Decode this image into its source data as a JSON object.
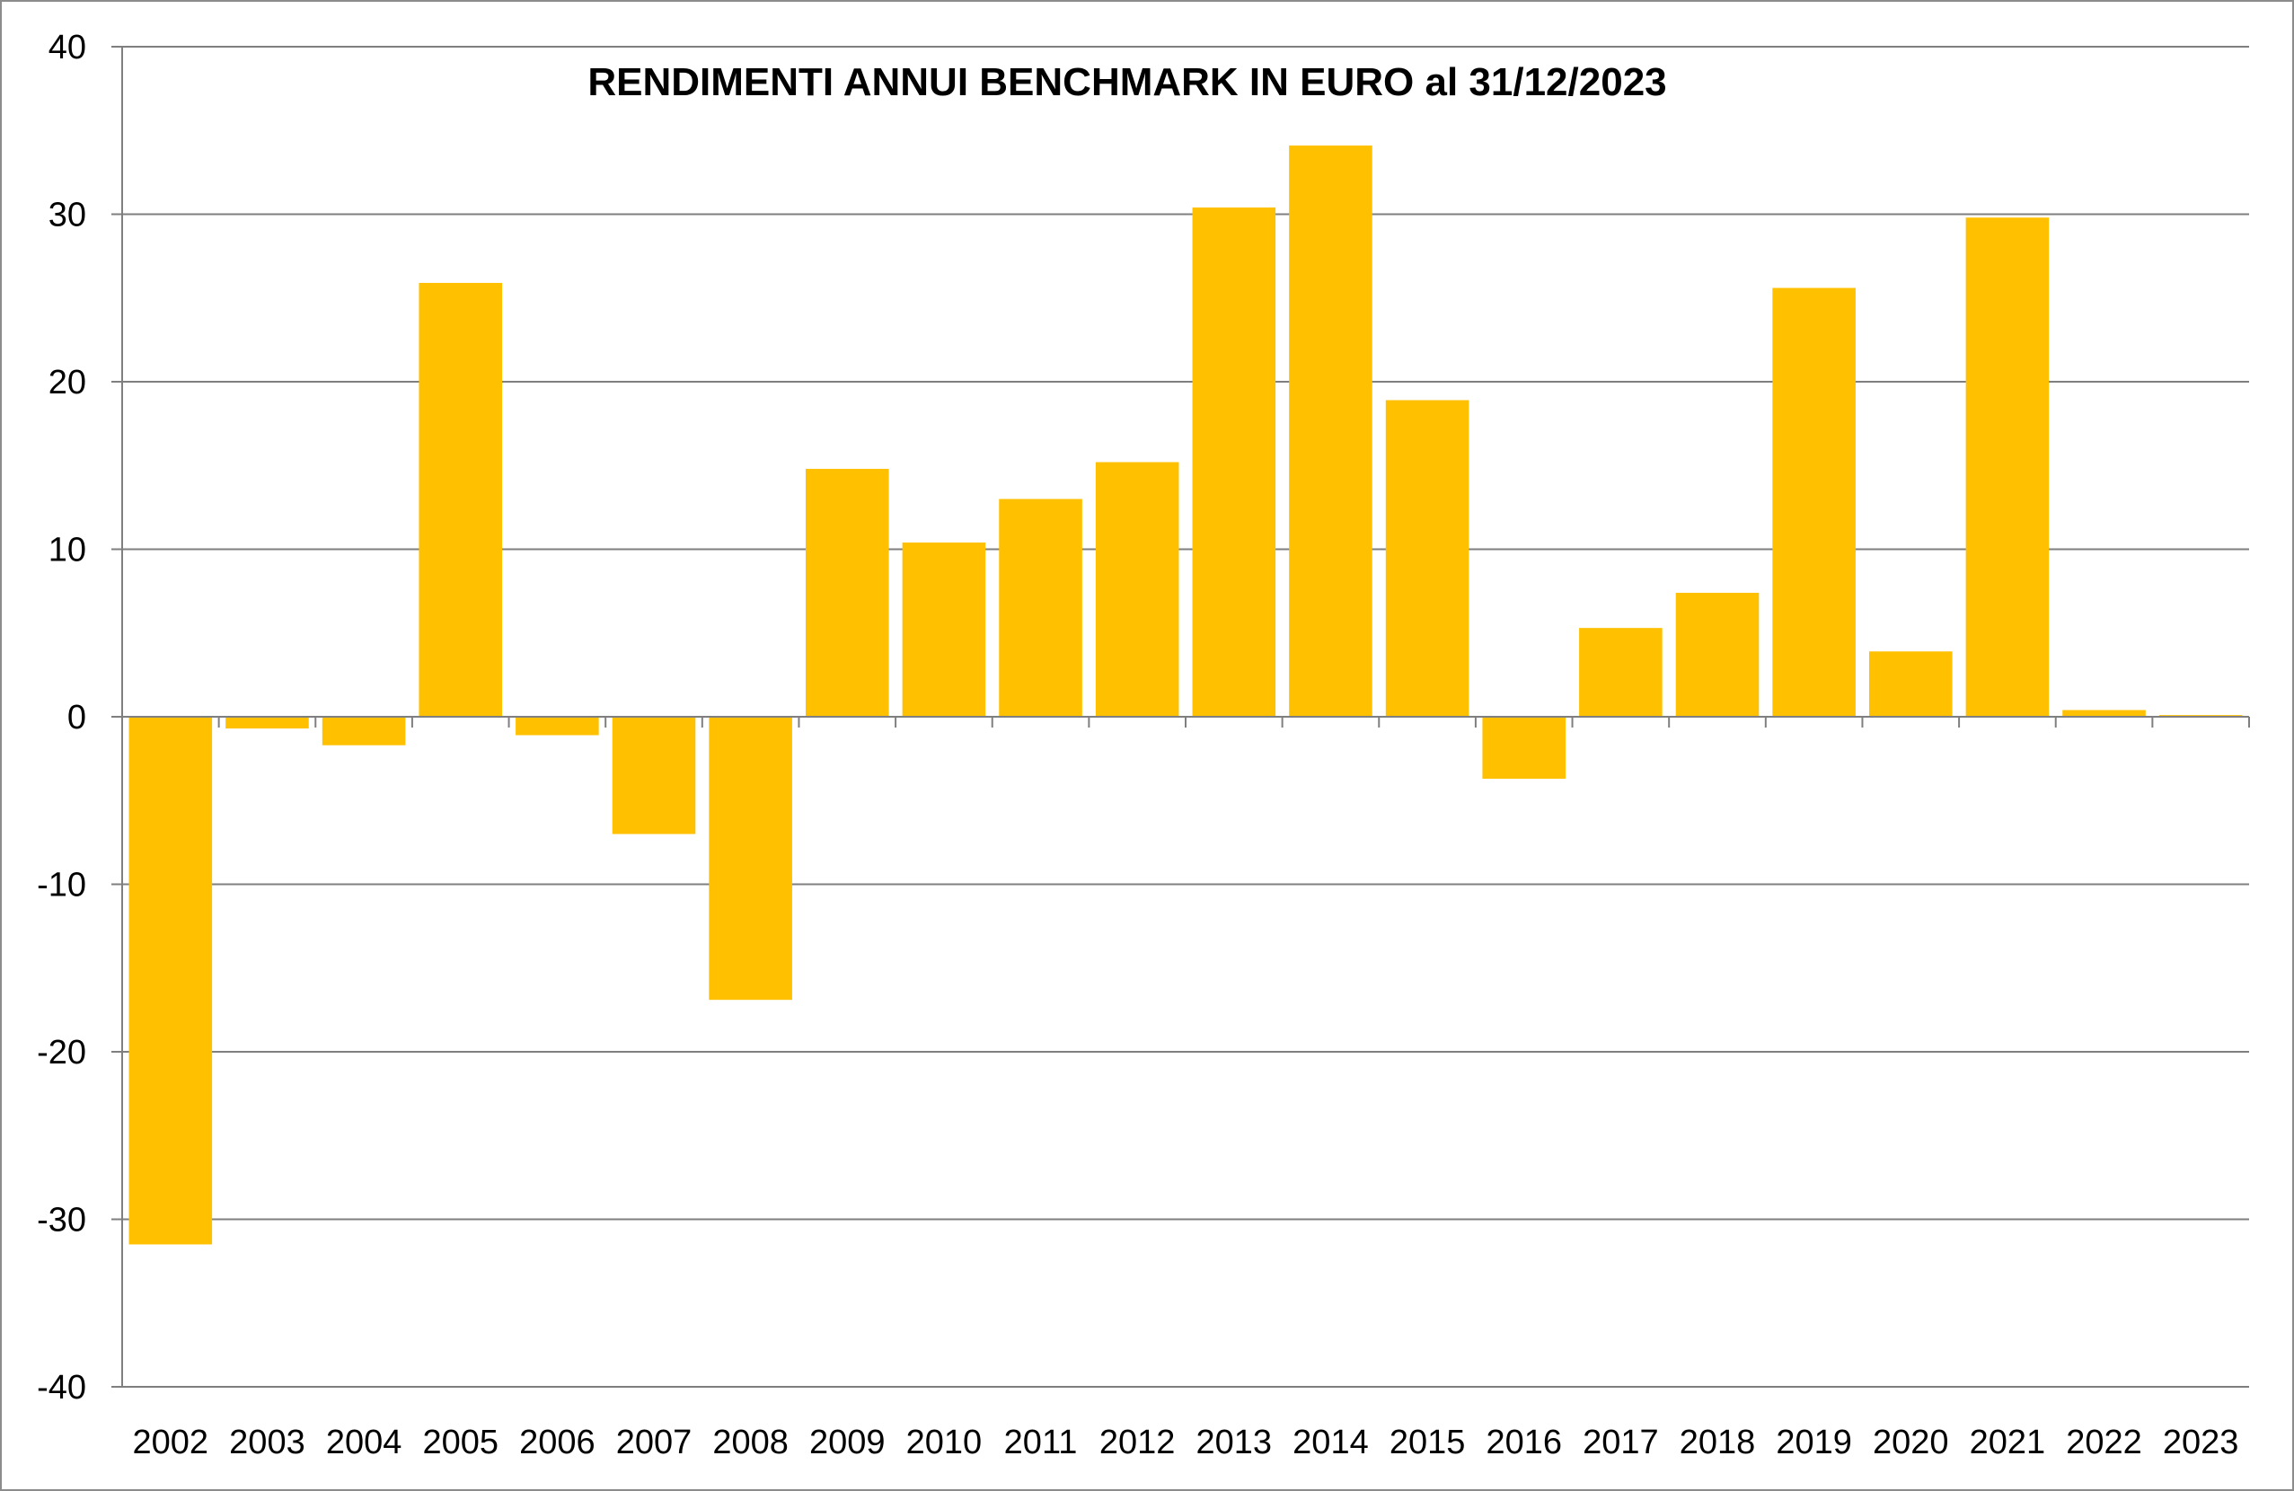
{
  "chart_data": {
    "type": "bar",
    "title": "RENDIMENTI ANNUI BENCHMARK IN EURO al 31/12/2023",
    "xlabel": "",
    "ylabel": "",
    "categories": [
      "2002",
      "2003",
      "2004",
      "2005",
      "2006",
      "2007",
      "2008",
      "2009",
      "2010",
      "2011",
      "2012",
      "2013",
      "2014",
      "2015",
      "2016",
      "2017",
      "2018",
      "2019",
      "2020",
      "2021",
      "2022",
      "2023"
    ],
    "values": [
      -31.5,
      -0.7,
      -1.7,
      25.9,
      -1.1,
      -7.0,
      -16.9,
      14.8,
      10.4,
      13.0,
      15.2,
      30.4,
      34.1,
      18.9,
      -3.7,
      5.3,
      7.4,
      25.6,
      3.9,
      29.8,
      0.4,
      0.1
    ],
    "ylim": [
      -40,
      40
    ],
    "yticks": [
      -40,
      -30,
      -20,
      -10,
      0,
      10,
      20,
      30,
      40
    ],
    "grid": true,
    "legend": "none",
    "bar_color": "#FFC000",
    "grid_color": "#7f7f7f"
  }
}
